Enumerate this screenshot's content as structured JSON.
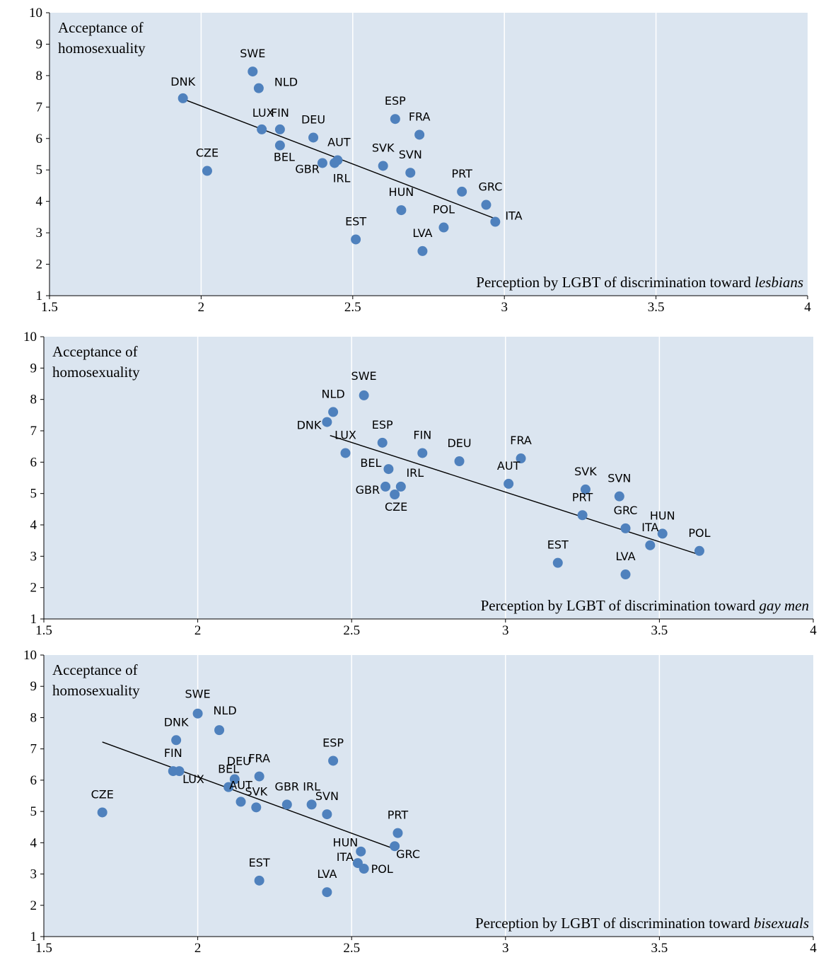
{
  "page": {
    "y_axis_title_line1": "Acceptance of",
    "y_axis_title_line2": "homosexuality"
  },
  "colors": {
    "plot_bg": "#dbe5f0",
    "grid": "#ffffff",
    "marker": "#4f81bd",
    "trend": "#000000",
    "axis": "#000000",
    "text": "#000000"
  },
  "chart_data": [
    {
      "type": "scatter",
      "xlabel_prefix": "Perception by LGBT of discrimination toward ",
      "xlabel_italic": "lesbians",
      "ylabel": "Acceptance of homosexuality",
      "xlim": [
        1.5,
        4
      ],
      "ylim": [
        1,
        10
      ],
      "xticks": [
        "1.5",
        "2",
        "2.5",
        "3",
        "3.5",
        "4"
      ],
      "yticks": [
        "1",
        "2",
        "3",
        "4",
        "5",
        "6",
        "7",
        "8",
        "9",
        "10"
      ],
      "grid_x": true,
      "trendline": [
        [
          1.95,
          7.22
        ],
        [
          2.97,
          3.45
        ]
      ],
      "points": [
        {
          "label": "DNK",
          "x": 1.94,
          "y": 7.28
        },
        {
          "label": "SWE",
          "x": 2.17,
          "y": 8.13
        },
        {
          "label": "NLD",
          "x": 2.19,
          "y": 7.6
        },
        {
          "label": "LUX",
          "x": 2.2,
          "y": 6.29
        },
        {
          "label": "FIN",
          "x": 2.26,
          "y": 6.29
        },
        {
          "label": "BEL",
          "x": 2.26,
          "y": 5.78
        },
        {
          "label": "CZE",
          "x": 2.02,
          "y": 4.97
        },
        {
          "label": "DEU",
          "x": 2.37,
          "y": 6.03
        },
        {
          "label": "AUT",
          "x": 2.45,
          "y": 5.31
        },
        {
          "label": "GBR",
          "x": 2.4,
          "y": 5.22
        },
        {
          "label": "IRL",
          "x": 2.44,
          "y": 5.22
        },
        {
          "label": "ESP",
          "x": 2.64,
          "y": 6.62
        },
        {
          "label": "FRA",
          "x": 2.72,
          "y": 6.12
        },
        {
          "label": "SVK",
          "x": 2.6,
          "y": 5.13
        },
        {
          "label": "SVN",
          "x": 2.69,
          "y": 4.91
        },
        {
          "label": "HUN",
          "x": 2.66,
          "y": 3.72
        },
        {
          "label": "EST",
          "x": 2.51,
          "y": 2.79
        },
        {
          "label": "LVA",
          "x": 2.73,
          "y": 2.42
        },
        {
          "label": "POL",
          "x": 2.8,
          "y": 3.17
        },
        {
          "label": "PRT",
          "x": 2.86,
          "y": 4.31
        },
        {
          "label": "GRC",
          "x": 2.94,
          "y": 3.89
        },
        {
          "label": "ITA",
          "x": 2.97,
          "y": 3.35
        }
      ]
    },
    {
      "type": "scatter",
      "xlabel_prefix": "Perception by LGBT of discrimination toward ",
      "xlabel_italic": "gay men",
      "ylabel": "Acceptance of homosexuality",
      "xlim": [
        1.5,
        4
      ],
      "ylim": [
        1,
        10
      ],
      "xticks": [
        "1.5",
        "2",
        "2.5",
        "3",
        "3.5",
        "4"
      ],
      "yticks": [
        "1",
        "2",
        "3",
        "4",
        "5",
        "6",
        "7",
        "8",
        "9",
        "10"
      ],
      "grid_x": true,
      "trendline": [
        [
          2.43,
          6.85
        ],
        [
          3.63,
          3.05
        ]
      ],
      "points": [
        {
          "label": "SWE",
          "x": 2.54,
          "y": 8.13
        },
        {
          "label": "NLD",
          "x": 2.44,
          "y": 7.6
        },
        {
          "label": "DNK",
          "x": 2.42,
          "y": 7.28
        },
        {
          "label": "LUX",
          "x": 2.48,
          "y": 6.29
        },
        {
          "label": "ESP",
          "x": 2.6,
          "y": 6.62
        },
        {
          "label": "FIN",
          "x": 2.73,
          "y": 6.29
        },
        {
          "label": "DEU",
          "x": 2.85,
          "y": 6.03
        },
        {
          "label": "FRA",
          "x": 3.05,
          "y": 6.12
        },
        {
          "label": "BEL",
          "x": 2.62,
          "y": 5.78
        },
        {
          "label": "IRL",
          "x": 2.66,
          "y": 5.22
        },
        {
          "label": "GBR",
          "x": 2.61,
          "y": 5.22
        },
        {
          "label": "CZE",
          "x": 2.64,
          "y": 4.97
        },
        {
          "label": "AUT",
          "x": 3.01,
          "y": 5.31
        },
        {
          "label": "SVK",
          "x": 3.26,
          "y": 5.13
        },
        {
          "label": "SVN",
          "x": 3.37,
          "y": 4.91
        },
        {
          "label": "PRT",
          "x": 3.25,
          "y": 4.31
        },
        {
          "label": "GRC",
          "x": 3.39,
          "y": 3.89
        },
        {
          "label": "HUN",
          "x": 3.51,
          "y": 3.72
        },
        {
          "label": "ITA",
          "x": 3.47,
          "y": 3.35
        },
        {
          "label": "POL",
          "x": 3.63,
          "y": 3.17
        },
        {
          "label": "EST",
          "x": 3.17,
          "y": 2.79
        },
        {
          "label": "LVA",
          "x": 3.39,
          "y": 2.42
        }
      ]
    },
    {
      "type": "scatter",
      "xlabel_prefix": "Perception by LGBT of discrimination toward ",
      "xlabel_italic": "bisexuals",
      "ylabel": "Acceptance of homosexuality",
      "xlim": [
        1.5,
        4
      ],
      "ylim": [
        1,
        10
      ],
      "xticks": [
        "1.5",
        "2",
        "2.5",
        "3",
        "3.5",
        "4"
      ],
      "yticks": [
        "1",
        "2",
        "3",
        "4",
        "5",
        "6",
        "7",
        "8",
        "9",
        "10"
      ],
      "grid_x": true,
      "trendline": [
        [
          1.69,
          7.22
        ],
        [
          2.64,
          3.8
        ]
      ],
      "points": [
        {
          "label": "SWE",
          "x": 2.0,
          "y": 8.13
        },
        {
          "label": "NLD",
          "x": 2.07,
          "y": 7.6
        },
        {
          "label": "DNK",
          "x": 1.93,
          "y": 7.28
        },
        {
          "label": "FIN",
          "x": 1.92,
          "y": 6.29
        },
        {
          "label": "LUX",
          "x": 1.94,
          "y": 6.29
        },
        {
          "label": "DEU",
          "x": 2.12,
          "y": 6.03
        },
        {
          "label": "FRA",
          "x": 2.2,
          "y": 6.12
        },
        {
          "label": "BEL",
          "x": 2.1,
          "y": 5.78
        },
        {
          "label": "AUT",
          "x": 2.14,
          "y": 5.31
        },
        {
          "label": "SVK",
          "x": 2.19,
          "y": 5.13
        },
        {
          "label": "GBR",
          "x": 2.29,
          "y": 5.22
        },
        {
          "label": "IRL",
          "x": 2.37,
          "y": 5.22
        },
        {
          "label": "SVN",
          "x": 2.42,
          "y": 4.91
        },
        {
          "label": "CZE",
          "x": 1.69,
          "y": 4.97
        },
        {
          "label": "ESP",
          "x": 2.44,
          "y": 6.62
        },
        {
          "label": "PRT",
          "x": 2.65,
          "y": 4.31
        },
        {
          "label": "HUN",
          "x": 2.53,
          "y": 3.72
        },
        {
          "label": "GRC",
          "x": 2.64,
          "y": 3.89
        },
        {
          "label": "ITA",
          "x": 2.52,
          "y": 3.35
        },
        {
          "label": "POL",
          "x": 2.54,
          "y": 3.17
        },
        {
          "label": "EST",
          "x": 2.2,
          "y": 2.79
        },
        {
          "label": "LVA",
          "x": 2.42,
          "y": 2.42
        }
      ]
    }
  ]
}
